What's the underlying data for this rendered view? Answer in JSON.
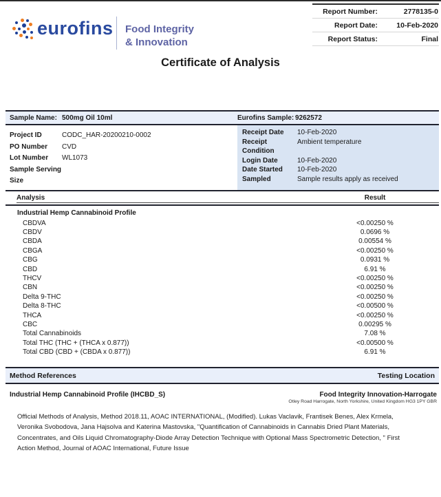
{
  "brand": {
    "name": "eurofins",
    "division_line1": "Food Integrity",
    "division_line2": "& Innovation",
    "accent_orange": "#ee7d22",
    "accent_blue": "#1d3f97",
    "name_color": "#2a4a9f"
  },
  "report_info": {
    "rows": [
      {
        "label": "Report Number:",
        "value": "2778135-0"
      },
      {
        "label": "Report Date:",
        "value": "10-Feb-2020"
      },
      {
        "label": "Report Status:",
        "value": "Final"
      }
    ]
  },
  "page": {
    "title": "Certificate of Analysis"
  },
  "sample_header": {
    "name_label": "Sample Name:",
    "name_value": "500mg Oil 10ml",
    "sample_label": "Eurofins Sample:",
    "sample_value": "9262572"
  },
  "sample_details_left": [
    {
      "label": "Project ID",
      "value": "CODC_HAR-20200210-0002"
    },
    {
      "label": "PO Number",
      "value": "CVD"
    },
    {
      "label": "Lot Number",
      "value": "WL1073"
    },
    {
      "label": "Sample Serving Size",
      "value": ""
    }
  ],
  "sample_details_right": [
    {
      "label": "Receipt Date",
      "value": "10-Feb-2020"
    },
    {
      "label": "Receipt Condition",
      "value": "Ambient temperature"
    },
    {
      "label": "Login Date",
      "value": "10-Feb-2020"
    },
    {
      "label": "Date Started",
      "value": "10-Feb-2020"
    },
    {
      "label": "Sampled",
      "value": "Sample results apply as received"
    }
  ],
  "results_table": {
    "analysis_header": "Analysis",
    "result_header": "Result",
    "section_title": "Industrial Hemp Cannabinoid Profile",
    "rows": [
      {
        "analyte": "CBDVA",
        "result": "<0.00250 %"
      },
      {
        "analyte": "CBDV",
        "result": "0.0696 %"
      },
      {
        "analyte": "CBDA",
        "result": "0.00554 %"
      },
      {
        "analyte": "CBGA",
        "result": "<0.00250 %"
      },
      {
        "analyte": "CBG",
        "result": "0.0931 %"
      },
      {
        "analyte": "CBD",
        "result": "6.91 %"
      },
      {
        "analyte": "THCV",
        "result": "<0.00250 %"
      },
      {
        "analyte": "CBN",
        "result": "<0.00250 %"
      },
      {
        "analyte": "Delta 9-THC",
        "result": "<0.00250 %"
      },
      {
        "analyte": "Delta 8-THC",
        "result": "<0.00500 %"
      },
      {
        "analyte": "THCA",
        "result": "<0.00250 %"
      },
      {
        "analyte": "CBC",
        "result": "0.00295 %"
      },
      {
        "analyte": "Total Cannabinoids",
        "result": "7.08 %"
      },
      {
        "analyte": "Total THC (THC + (THCA x 0.877))",
        "result": "<0.00500 %"
      },
      {
        "analyte": "Total CBD (CBD + (CBDA x 0.877))",
        "result": "6.91 %"
      }
    ]
  },
  "method_references": {
    "header_left": "Method References",
    "header_right": "Testing Location",
    "method_title": "Industrial Hemp Cannabinoid Profile (IHCBD_S)",
    "location_name": "Food Integrity Innovation-Harrogate",
    "location_address": "Otley Road Harrogate, North Yorkshire, United Kingdom HG3 1PY GBR",
    "citation_lines": [
      "Official Methods of Analysis, Method 2018.11, AOAC INTERNATIONAL, (Modified). Lukas Vaclavik, Frantisek Benes, Alex Krmela,",
      "Veronika Svobodova, Jana Hajsolva and Katerina Mastovska, \"Quantification of Cannabinoids in Cannabis Dried Plant Materials,",
      "Concentrates, and Oils Liquid Chromatography-Diode Array Detection Technique with Optional Mass Spectrometric Detection, \" First",
      "Action Method, Journal of AOAC International, Future Issue"
    ]
  }
}
